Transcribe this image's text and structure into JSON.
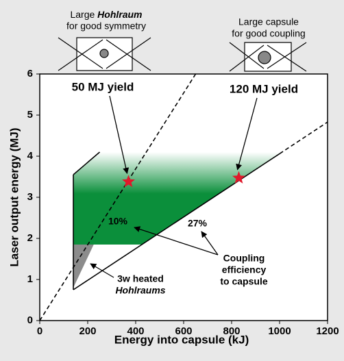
{
  "chart_data": {
    "type": "region",
    "x_label": "Energy into capsule (kJ)",
    "y_label": "Laser output energy (MJ)",
    "xlim": [
      0,
      1200
    ],
    "xticks": [
      0,
      200,
      400,
      600,
      800,
      1000,
      1200
    ],
    "ylim": [
      0,
      6
    ],
    "yticks": [
      0,
      1,
      2,
      3,
      4,
      5,
      6
    ],
    "regions": [
      {
        "x": [
          140,
          140,
          250,
          1010,
          426
        ],
        "y": [
          1.85,
          3.55,
          4.1,
          4.1,
          1.85
        ],
        "color": "#0b8f3b"
      },
      {
        "x": [
          140,
          140,
          225
        ],
        "y": [
          0.8,
          1.85,
          1.85
        ],
        "color": "#8c8c8c"
      }
    ],
    "lines": [
      {
        "x": [
          0,
          650
        ],
        "y": [
          0,
          6
        ],
        "dashed": true
      },
      {
        "x": [
          140,
          1000
        ],
        "y": [
          0.75,
          4.06
        ],
        "dashed": false
      },
      {
        "x": [
          1000,
          1200
        ],
        "y": [
          4.06,
          4.83
        ],
        "dashed": true
      },
      {
        "x": [
          140,
          140
        ],
        "y": [
          0.75,
          3.55
        ],
        "dashed": false
      },
      {
        "x": [
          140,
          250
        ],
        "y": [
          3.55,
          4.1
        ],
        "dashed": false
      }
    ],
    "points": {
      "x": [
        370,
        830
      ],
      "y": [
        3.38,
        3.47
      ],
      "color": "#e0192b",
      "labels": [
        "50 MJ yield",
        "120 MJ yield"
      ]
    },
    "line_labels": [
      "10%",
      "27%"
    ],
    "coupling_label": [
      "Coupling",
      "efficiency",
      "to capsule"
    ],
    "heated_label": [
      "3w heated",
      "Hohlraums"
    ],
    "designs": [
      {
        "line1": "Large",
        "emph": "Hohlraum",
        "line2": "for good symmetry"
      },
      {
        "line1": "Large capsule",
        "line2": "for good coupling"
      }
    ]
  }
}
